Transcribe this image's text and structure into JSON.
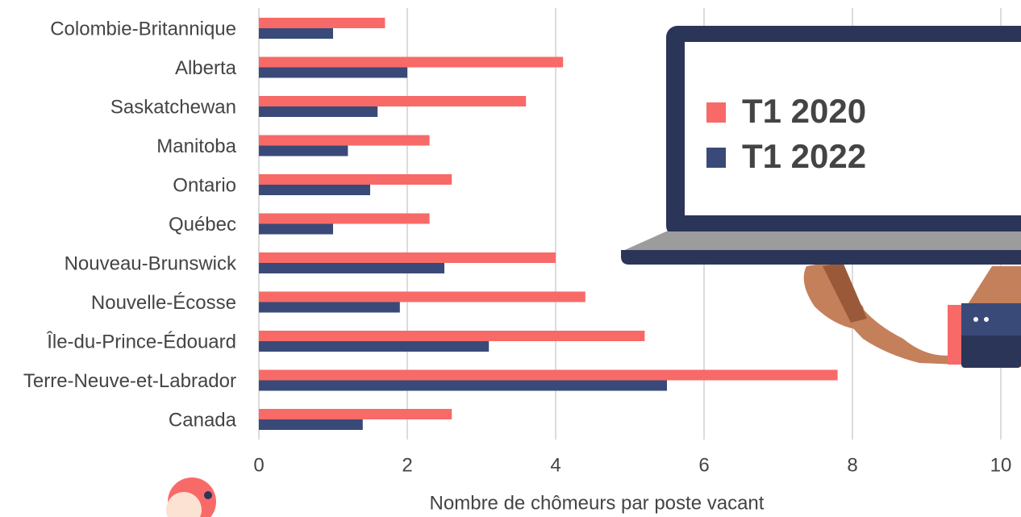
{
  "chart_data": {
    "type": "barh",
    "x_label": "Nombre de chômeurs par poste vacant",
    "categories": [
      "Colombie-Britannique",
      "Alberta",
      "Saskatchewan",
      "Manitoba",
      "Ontario",
      "Québec",
      "Nouveau-Brunswick",
      "Nouvelle-Écosse",
      "Île-du-Prince-Édouard",
      "Terre-Neuve-et-Labrador",
      "Canada"
    ],
    "series": [
      {
        "name": "T1 2020",
        "color": "#f76a68",
        "values": [
          1.7,
          4.1,
          3.6,
          2.3,
          2.6,
          2.3,
          4.0,
          4.4,
          5.2,
          7.8,
          2.6
        ]
      },
      {
        "name": "T1 2022",
        "color": "#3a4a78",
        "values": [
          1.0,
          2.0,
          1.6,
          1.2,
          1.5,
          1.0,
          2.5,
          1.9,
          3.1,
          5.5,
          1.4
        ]
      }
    ],
    "xlim": [
      0,
      10
    ],
    "xticks": [
      0,
      2,
      4,
      6,
      8,
      10
    ],
    "grid": true,
    "legend": "upper right"
  }
}
